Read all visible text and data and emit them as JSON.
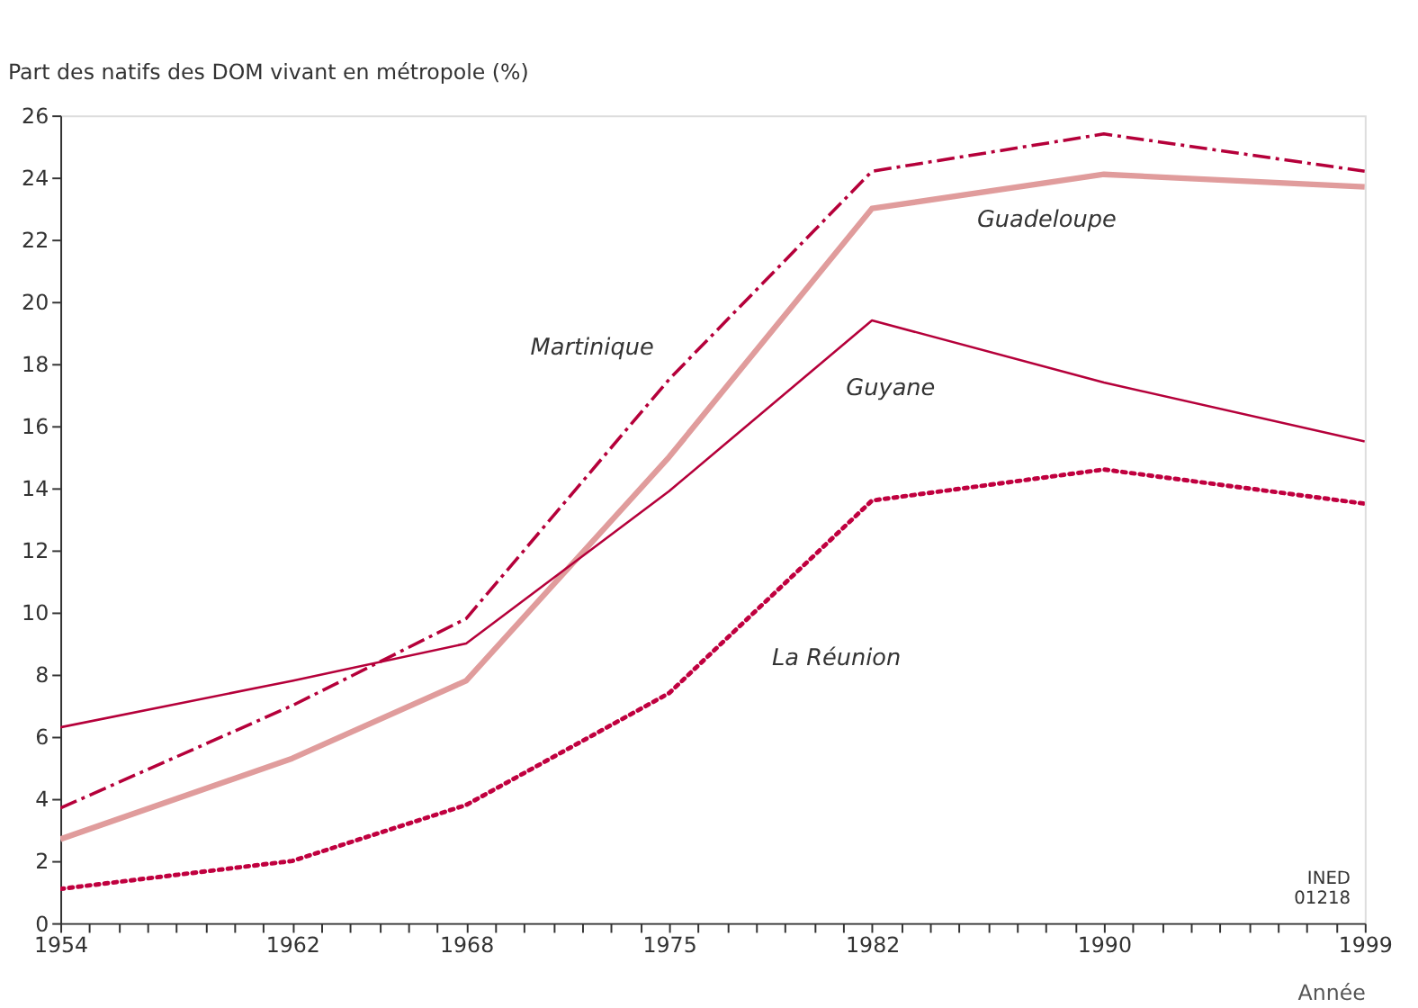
{
  "chart_data": {
    "type": "line",
    "ylabel": "Part des natifs des DOM vivant en métropole (%)",
    "xlabel": "Année",
    "x": [
      1954,
      1962,
      1968,
      1975,
      1982,
      1990,
      1999
    ],
    "series": [
      {
        "name": "Martinique",
        "color": "#b5003a",
        "line_style": "dashed",
        "values": [
          3.7,
          7.0,
          9.8,
          17.5,
          24.2,
          25.4,
          24.2
        ]
      },
      {
        "name": "Guadeloupe",
        "color": "#e09c9c",
        "line_style": "solid",
        "values": [
          2.7,
          5.3,
          7.8,
          15.0,
          23.0,
          24.1,
          23.7
        ]
      },
      {
        "name": "Guyane",
        "color": "#b5003a",
        "line_style": "solid",
        "values": [
          6.3,
          7.8,
          9.0,
          13.9,
          19.4,
          17.4,
          15.5
        ]
      },
      {
        "name": "La Réunion",
        "color": "#c0003f",
        "line_style": "dotted",
        "values": [
          1.1,
          2.0,
          3.8,
          7.4,
          13.6,
          14.6,
          13.5
        ]
      }
    ],
    "xlim": [
      1954,
      1999
    ],
    "xticks": [
      1954,
      {
        "value": 1955,
        "label": null
      },
      {
        "value": 1956,
        "label": null
      },
      {
        "value": 1957,
        "label": null
      },
      {
        "value": 1958,
        "label": null
      },
      {
        "value": 1959,
        "label": null
      },
      {
        "value": 1960,
        "label": null
      },
      {
        "value": 1961,
        "label": null
      },
      1962,
      {
        "value": 1963,
        "label": null
      },
      {
        "value": 1964,
        "label": null
      },
      {
        "value": 1965,
        "label": null
      },
      {
        "value": 1966,
        "label": null
      },
      {
        "value": 1967,
        "label": null
      },
      1968,
      {
        "value": 1969,
        "label": null
      },
      {
        "value": 1970,
        "label": null
      },
      {
        "value": 1971,
        "label": null
      },
      {
        "value": 1972,
        "label": null
      },
      {
        "value": 1973,
        "label": null
      },
      {
        "value": 1974,
        "label": null
      },
      1975,
      {
        "value": 1976,
        "label": null
      },
      {
        "value": 1977,
        "label": null
      },
      {
        "value": 1978,
        "label": null
      },
      {
        "value": 1979,
        "label": null
      },
      {
        "value": 1980,
        "label": null
      },
      {
        "value": 1981,
        "label": null
      },
      1982,
      {
        "value": 1983,
        "label": null
      },
      {
        "value": 1984,
        "label": null
      },
      {
        "value": 1985,
        "label": null
      },
      {
        "value": 1986,
        "label": null
      },
      {
        "value": 1987,
        "label": null
      },
      {
        "value": 1988,
        "label": null
      },
      {
        "value": 1989,
        "label": null
      },
      1990,
      {
        "value": 1991,
        "label": null
      },
      {
        "value": 1992,
        "label": null
      },
      {
        "value": 1993,
        "label": null
      },
      {
        "value": 1994,
        "label": null
      },
      {
        "value": 1995,
        "label": null
      },
      {
        "value": 1996,
        "label": null
      },
      {
        "value": 1997,
        "label": null
      },
      {
        "value": 1998,
        "label": null
      },
      1999
    ],
    "ylim": [
      0,
      26
    ],
    "yticks": [
      0,
      2,
      4,
      6,
      8,
      10,
      12,
      14,
      16,
      18,
      20,
      22,
      24,
      26
    ],
    "grid": false,
    "legend": false,
    "annotations": [
      "INED\n01218"
    ]
  }
}
